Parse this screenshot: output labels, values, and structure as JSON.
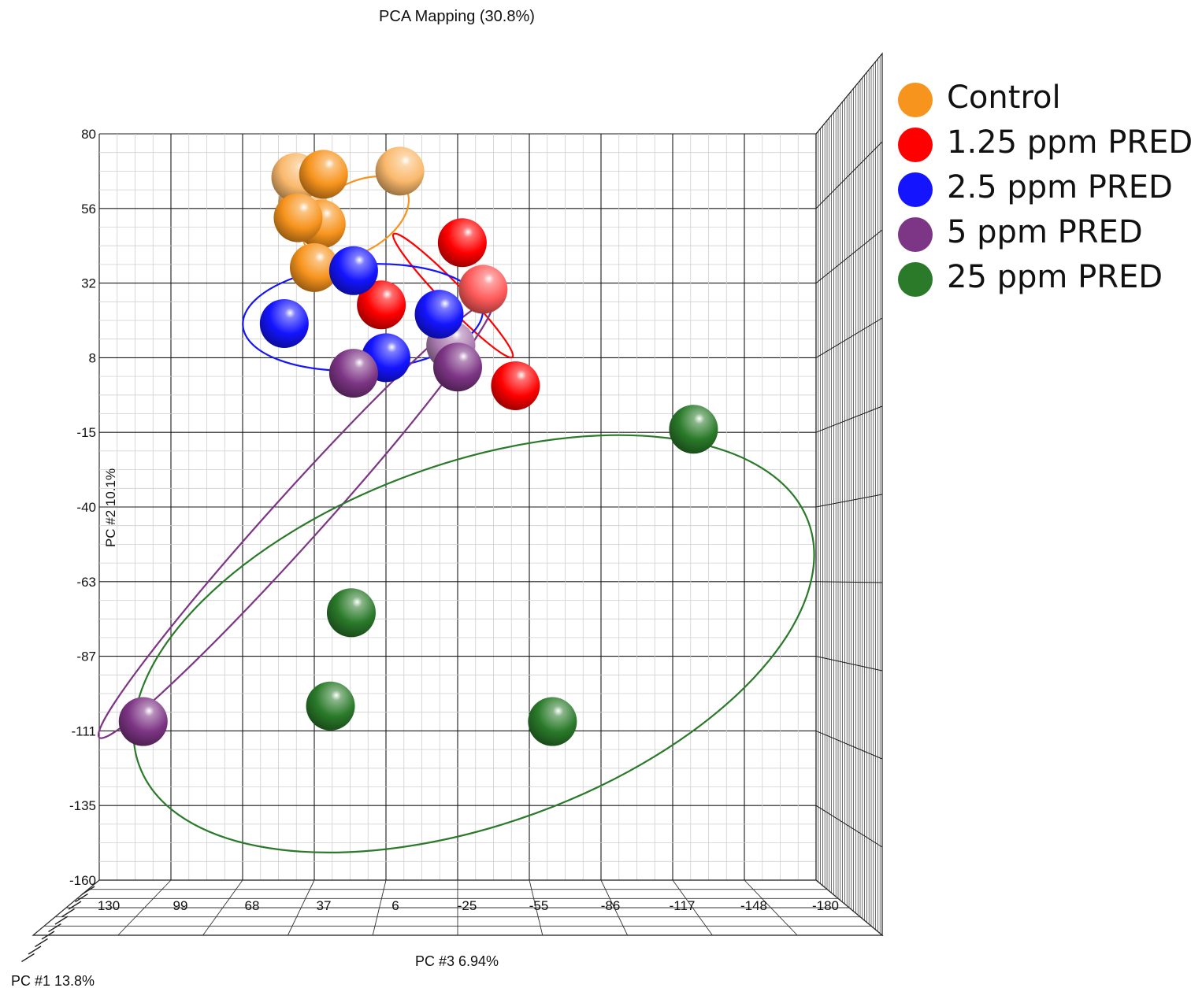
{
  "chart_data": {
    "type": "scatter",
    "title": "PCA Mapping (30.8%)",
    "xlabel": "PC #3 6.94%",
    "ylabel": "PC #2 10.1%",
    "zlabel": "PC #1 13.8%",
    "xlim": [
      130,
      -180
    ],
    "ylim": [
      -160,
      80
    ],
    "x_ticks": [
      "130",
      "99",
      "68",
      "37",
      "6",
      "-25",
      "-55",
      "-86",
      "-117",
      "-148",
      "-180"
    ],
    "y_ticks": [
      "80",
      "56",
      "32",
      "8",
      "-15",
      "-40",
      "-63",
      "-87",
      "-111",
      "-135",
      "-160"
    ],
    "grid": true,
    "legend_position": "right",
    "series": [
      {
        "name": "Control",
        "color": "#f7941d",
        "points": [
          {
            "x": 42,
            "y": 58,
            "depth": "far"
          },
          {
            "x": 45,
            "y": 66,
            "depth": "far"
          },
          {
            "x": 33,
            "y": 67,
            "depth": "near"
          },
          {
            "x": 0,
            "y": 68,
            "depth": "far"
          },
          {
            "x": 34,
            "y": 51,
            "depth": "near"
          },
          {
            "x": 44,
            "y": 53,
            "depth": "near"
          },
          {
            "x": 37,
            "y": 37,
            "depth": "near"
          }
        ],
        "ellipse": {
          "cx": 19,
          "cy": 53,
          "rx": 25,
          "ry": 11,
          "rotate": -30
        }
      },
      {
        "name": "1.25 ppm PRED",
        "color": "#ff0000",
        "points": [
          {
            "x": -27,
            "y": 45,
            "depth": "near"
          },
          {
            "x": -36,
            "y": 30,
            "depth": "far"
          },
          {
            "x": 8,
            "y": 25,
            "depth": "near"
          },
          {
            "x": -50,
            "y": -1,
            "depth": "near"
          }
        ],
        "ellipse": {
          "cx": -23,
          "cy": 28,
          "rx": 37,
          "ry": 3.5,
          "rotate": 46
        }
      },
      {
        "name": "2.5 ppm PRED",
        "color": "#1414ff",
        "points": [
          {
            "x": 20,
            "y": 36,
            "depth": "near"
          },
          {
            "x": -17,
            "y": 22,
            "depth": "near"
          },
          {
            "x": 50,
            "y": 19,
            "depth": "near"
          },
          {
            "x": 6,
            "y": 8,
            "depth": "near"
          }
        ],
        "ellipse": {
          "cx": 16,
          "cy": 21,
          "rx": 52,
          "ry": 17,
          "rotate": -4
        }
      },
      {
        "name": "5 ppm PRED",
        "color": "#7d3585",
        "points": [
          {
            "x": -22,
            "y": 12,
            "depth": "far"
          },
          {
            "x": 20,
            "y": 3,
            "depth": "near"
          },
          {
            "x": -25,
            "y": 5,
            "depth": "near"
          },
          {
            "x": 111,
            "y": -109,
            "depth": "near"
          }
        ],
        "ellipse": {
          "cx": 45,
          "cy": -44,
          "rx": 127,
          "ry": 8,
          "rotate": -48
        }
      },
      {
        "name": "25 ppm PRED",
        "color": "#2a7a2a",
        "points": [
          {
            "x": -127,
            "y": -15,
            "depth": "near"
          },
          {
            "x": 21,
            "y": -74,
            "depth": "near"
          },
          {
            "x": 30,
            "y": -104,
            "depth": "near"
          },
          {
            "x": -66,
            "y": -109,
            "depth": "near"
          }
        ],
        "ellipse": {
          "cx": -32,
          "cy": -84,
          "rx": 154,
          "ry": 58,
          "rotate": -20
        }
      }
    ]
  }
}
